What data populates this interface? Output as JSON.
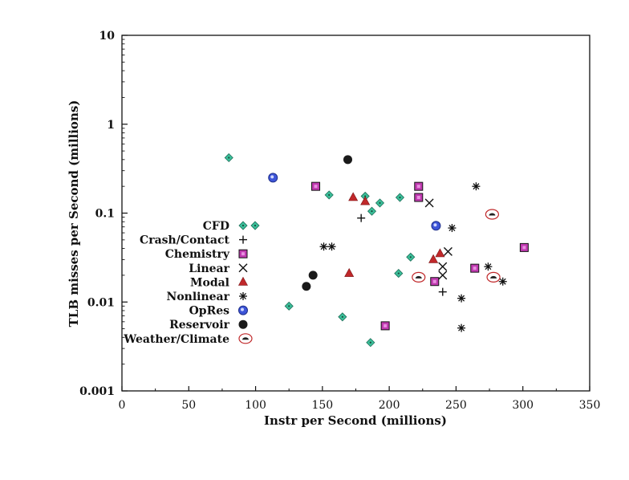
{
  "chart_data": {
    "type": "scatter",
    "xlabel": "Instr per Second (millions)",
    "ylabel": "TLB misses per Second (millions)",
    "xlim": [
      0,
      350
    ],
    "ylim": [
      0.001,
      10
    ],
    "yscale": "log",
    "x_ticks": [
      0,
      50,
      100,
      150,
      200,
      250,
      300,
      350
    ],
    "x_tick_labels": [
      "0",
      "50",
      "100",
      "150",
      "200",
      "250",
      "300",
      "350"
    ],
    "y_ticks": [
      0.001,
      0.01,
      0.1,
      1,
      10
    ],
    "y_tick_labels": [
      "0.001",
      "0.01",
      "0.1",
      "1",
      "10"
    ],
    "grid": false,
    "legend_position": "left",
    "series": [
      {
        "name": "CFD",
        "marker": "diamond",
        "color": "#3bbf9a",
        "points": [
          [
            80,
            0.42
          ],
          [
            155,
            0.16
          ],
          [
            182,
            0.155
          ],
          [
            193,
            0.13
          ],
          [
            187,
            0.105
          ],
          [
            208,
            0.15
          ],
          [
            216,
            0.032
          ],
          [
            207,
            0.021
          ],
          [
            125,
            0.009
          ],
          [
            165,
            0.0068
          ],
          [
            186,
            0.0035
          ]
        ]
      },
      {
        "name": "Crash/Contact",
        "marker": "plus",
        "color": "#111111",
        "points": [
          [
            179,
            0.088
          ],
          [
            240,
            0.013
          ]
        ]
      },
      {
        "name": "Chemistry",
        "marker": "square",
        "color": "#c03ab0",
        "points": [
          [
            145,
            0.2
          ],
          [
            222,
            0.2
          ],
          [
            222,
            0.15
          ],
          [
            301,
            0.041
          ],
          [
            264,
            0.024
          ],
          [
            234,
            0.017
          ],
          [
            197,
            0.0054
          ]
        ]
      },
      {
        "name": "Linear",
        "marker": "x",
        "color": "#111111",
        "points": [
          [
            230,
            0.13
          ],
          [
            244,
            0.037
          ],
          [
            240,
            0.025
          ],
          [
            240,
            0.02
          ]
        ]
      },
      {
        "name": "Modal",
        "marker": "triangle",
        "color": "#c0282a",
        "points": [
          [
            173,
            0.15
          ],
          [
            182,
            0.135
          ],
          [
            170,
            0.021
          ],
          [
            233,
            0.03
          ],
          [
            238,
            0.035
          ]
        ]
      },
      {
        "name": "Nonlinear",
        "marker": "star",
        "color": "#111111",
        "points": [
          [
            265,
            0.2
          ],
          [
            247,
            0.068
          ],
          [
            151,
            0.042
          ],
          [
            157,
            0.042
          ],
          [
            274,
            0.025
          ],
          [
            285,
            0.017
          ],
          [
            254,
            0.011
          ],
          [
            254,
            0.0051
          ]
        ]
      },
      {
        "name": "OpRes",
        "marker": "circle-blue",
        "color": "#3d55d8",
        "points": [
          [
            113,
            0.25
          ],
          [
            235,
            0.072
          ]
        ]
      },
      {
        "name": "Reservoir",
        "marker": "dot",
        "color": "#1a1a1a",
        "points": [
          [
            169,
            0.4
          ],
          [
            143,
            0.02
          ],
          [
            138,
            0.015
          ]
        ]
      },
      {
        "name": "Weather/Climate",
        "marker": "weather",
        "color": "#c0282a",
        "points": [
          [
            277,
            0.097
          ],
          [
            222,
            0.019
          ],
          [
            278,
            0.019
          ]
        ]
      }
    ]
  }
}
